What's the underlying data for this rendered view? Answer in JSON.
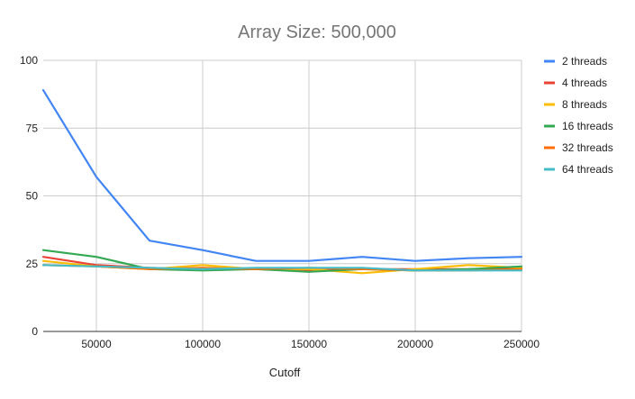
{
  "chart_data": {
    "type": "line",
    "title": "Array Size: 500,000",
    "xlabel": "Cutoff",
    "ylabel": "",
    "x": [
      25000,
      50000,
      75000,
      100000,
      125000,
      150000,
      175000,
      200000,
      225000,
      250000
    ],
    "xlim": [
      25000,
      250000
    ],
    "ylim": [
      0,
      100
    ],
    "xticks": [
      50000,
      100000,
      150000,
      200000,
      250000
    ],
    "yticks": [
      0,
      25,
      50,
      75,
      100
    ],
    "grid": true,
    "legend_position": "right",
    "series": [
      {
        "name": "2 threads",
        "color": "#4285f4",
        "values": [
          89,
          57,
          33.5,
          30,
          26,
          26,
          27.5,
          26,
          27,
          27.5
        ]
      },
      {
        "name": "4 threads",
        "color": "#ea4335",
        "values": [
          27.5,
          24.5,
          23.5,
          23,
          23,
          22.5,
          23,
          23,
          23,
          23.5
        ]
      },
      {
        "name": "8 threads",
        "color": "#fbbc04",
        "values": [
          26,
          24,
          23,
          24.5,
          23,
          23,
          21.5,
          23,
          24.5,
          23.5
        ]
      },
      {
        "name": "16 threads",
        "color": "#34a853",
        "values": [
          30,
          27.5,
          23,
          22.5,
          23,
          22,
          23,
          22.5,
          23,
          24
        ]
      },
      {
        "name": "32 threads",
        "color": "#ff6d01",
        "values": [
          24.5,
          24,
          23,
          23.5,
          23,
          23.5,
          23,
          22.5,
          22.5,
          23
        ]
      },
      {
        "name": "64 threads",
        "color": "#46bdc6",
        "values": [
          24.5,
          24,
          23.5,
          23,
          23.5,
          23.5,
          23.5,
          22.5,
          22.5,
          22.5
        ]
      }
    ]
  }
}
